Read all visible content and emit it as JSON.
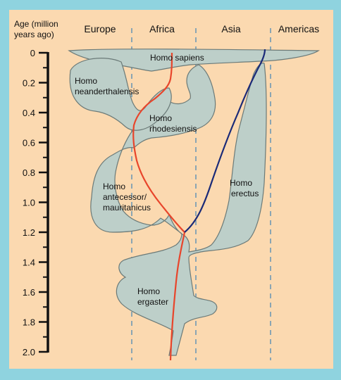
{
  "axis": {
    "label_line1": "Age (million",
    "label_line2": "years ago)",
    "ticks": [
      "0",
      "0.2",
      "0.4",
      "0.6",
      "0.8",
      "1.0",
      "1.2",
      "1.4",
      "1.6",
      "1.8",
      "2.0"
    ]
  },
  "regions": [
    "Europe",
    "Africa",
    "Asia",
    "Americas"
  ],
  "species": {
    "sapiens": "Homo sapiens",
    "neanderthalensis_1": "Homo",
    "neanderthalensis_2": "neanderthalensis",
    "rhodesiensis_1": "Homo",
    "rhodesiensis_2": "rhodesiensis",
    "erectus_1": "Homo",
    "erectus_2": "erectus",
    "antecessor_1": "Homo",
    "antecessor_2": "antecessor/",
    "antecessor_3": "mauritanicus",
    "ergaster_1": "Homo",
    "ergaster_2": "ergaster"
  },
  "colors": {
    "frame": "#8fd3df",
    "panel": "#fbd9b0",
    "blob_fill": "#bdcfc9",
    "blob_stroke": "#6b7a78",
    "divider": "#8aa5b3",
    "red_lineage": "#e8452b",
    "blue_lineage": "#1a2a78"
  }
}
